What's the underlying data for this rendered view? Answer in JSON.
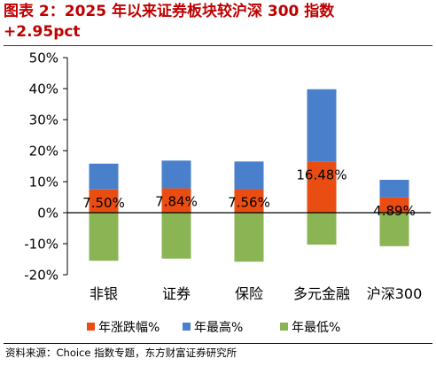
{
  "header": {
    "title_line1": "图表 2：2025 年以来证券板块较沪深 300 指数",
    "title_line2": "+2.95pct"
  },
  "footer": {
    "source": "资料来源：Choice 指数专题，东方财富证券研究所"
  },
  "chart_data": {
    "type": "bar",
    "title": "",
    "xlabel": "",
    "ylabel": "",
    "categories": [
      "非银",
      "证券",
      "保险",
      "多元金融",
      "沪深300"
    ],
    "y_tick_labels": [
      "50%",
      "40%",
      "30%",
      "20%",
      "10%",
      "0%",
      "-10%",
      "-20%"
    ],
    "y_ticks": [
      50,
      40,
      30,
      20,
      10,
      0,
      -10,
      -20
    ],
    "ylim": [
      -20,
      50
    ],
    "unit": "%",
    "grid": false,
    "legend_position": "bottom",
    "series": [
      {
        "name": "年涨跌幅%",
        "color": "#ea4d12",
        "values": [
          7.5,
          7.84,
          7.56,
          16.48,
          4.89
        ]
      },
      {
        "name": "年最高%",
        "color": "#4a7fcc",
        "values": [
          15.8,
          16.8,
          16.5,
          39.8,
          10.6
        ]
      },
      {
        "name": "年最低%",
        "color": "#8bb454",
        "values": [
          -15.5,
          -14.8,
          -15.8,
          -10.3,
          -10.8
        ]
      }
    ],
    "data_labels": [
      "7.50%",
      "7.84%",
      "7.56%",
      "16.48%",
      "4.89%"
    ]
  }
}
